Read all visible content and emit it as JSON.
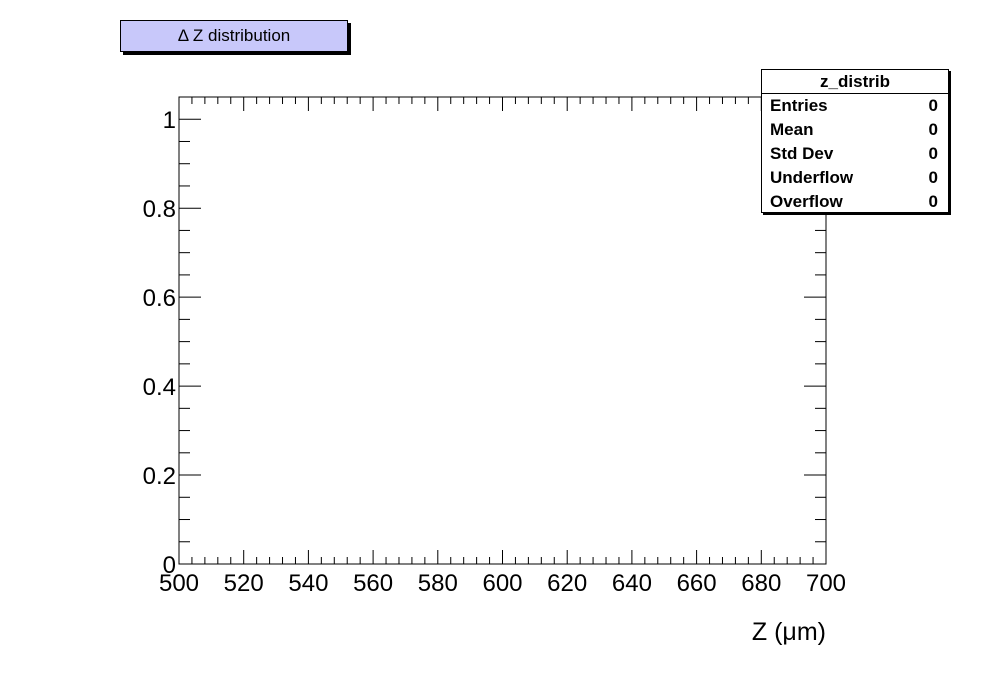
{
  "chart_data": {
    "type": "bar",
    "title": "Δ Z distribution",
    "xlabel": "Z (μm)",
    "ylabel": "",
    "xlim": [
      500,
      700
    ],
    "ylim": [
      0,
      1.05
    ],
    "x_ticks": [
      "500",
      "520",
      "540",
      "560",
      "580",
      "600",
      "620",
      "640",
      "660",
      "680",
      "700"
    ],
    "y_ticks": [
      "0",
      "0.2",
      "0.4",
      "0.6",
      "0.8",
      "1"
    ],
    "values": [],
    "grid": false,
    "legend": "none"
  },
  "stats": {
    "name": "z_distrib",
    "rows": [
      {
        "label": "Entries",
        "value": "0"
      },
      {
        "label": "Mean",
        "value": "0"
      },
      {
        "label": "Std Dev",
        "value": "0"
      },
      {
        "label": "Underflow",
        "value": "0"
      },
      {
        "label": "Overflow",
        "value": "0"
      }
    ]
  },
  "colors": {
    "title_fill": "#c8c8fa",
    "axis": "#000000"
  }
}
